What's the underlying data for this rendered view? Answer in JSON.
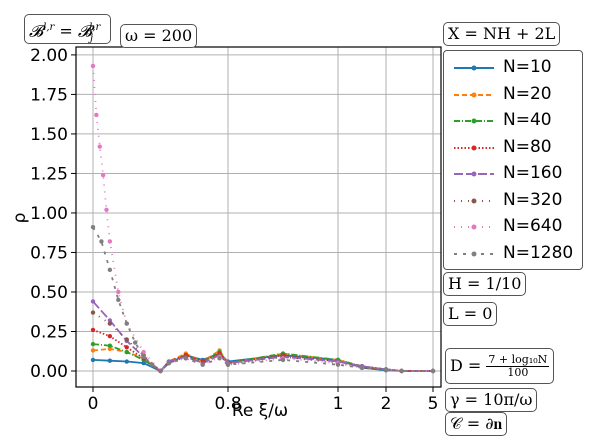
{
  "chart_data": {
    "type": "scatter",
    "xlabel": "Re ξ/ω",
    "ylabel": "ρ",
    "ylim": [
      0,
      2.05
    ],
    "x_ticks": [
      "0",
      "0.8",
      "1",
      "2",
      "5"
    ],
    "y_ticks": [
      "0.00",
      "0.25",
      "0.50",
      "0.75",
      "1.00",
      "1.25",
      "1.50",
      "1.75",
      "2.00"
    ],
    "grid": true,
    "legend_position": "right",
    "series": [
      {
        "name": "N=10",
        "color": "#1f77b4",
        "style": "solid",
        "x": [
          0,
          0.1,
          0.2,
          0.3,
          0.4,
          0.45,
          0.55,
          0.65,
          0.75,
          0.8,
          0.9,
          1.0,
          1.5,
          2.0,
          3.0,
          5.0
        ],
        "y": [
          0.07,
          0.065,
          0.06,
          0.05,
          0.0,
          0.05,
          0.1,
          0.07,
          0.11,
          0.06,
          0.1,
          0.07,
          0.02,
          0.005,
          0.0,
          0.0
        ]
      },
      {
        "name": "N=20",
        "color": "#ff7f0e",
        "style": "dashed",
        "x": [
          0,
          0.1,
          0.2,
          0.3,
          0.4,
          0.45,
          0.55,
          0.65,
          0.75,
          0.8,
          0.9,
          1.0,
          1.5,
          2.0,
          3.0,
          5.0
        ],
        "y": [
          0.13,
          0.14,
          0.12,
          0.08,
          0.0,
          0.06,
          0.11,
          0.06,
          0.13,
          0.05,
          0.11,
          0.07,
          0.03,
          0.01,
          0.0,
          0.0
        ]
      },
      {
        "name": "N=40",
        "color": "#2ca02c",
        "style": "dashdot",
        "x": [
          0,
          0.1,
          0.2,
          0.3,
          0.4,
          0.45,
          0.55,
          0.65,
          0.75,
          0.8,
          0.9,
          1.0,
          1.5,
          2.0,
          3.0,
          5.0
        ],
        "y": [
          0.17,
          0.16,
          0.12,
          0.07,
          0.0,
          0.06,
          0.1,
          0.06,
          0.12,
          0.05,
          0.11,
          0.07,
          0.03,
          0.01,
          0.0,
          0.0
        ]
      },
      {
        "name": "N=80",
        "color": "#d62728",
        "style": "dotted",
        "x": [
          0,
          0.1,
          0.2,
          0.3,
          0.4,
          0.45,
          0.55,
          0.65,
          0.75,
          0.8,
          0.9,
          1.0,
          1.5,
          2.0,
          3.0,
          5.0
        ],
        "y": [
          0.26,
          0.22,
          0.15,
          0.08,
          0.0,
          0.06,
          0.1,
          0.06,
          0.11,
          0.05,
          0.1,
          0.06,
          0.03,
          0.01,
          0.0,
          0.0
        ]
      },
      {
        "name": "N=160",
        "color": "#9467bd",
        "style": "longdash",
        "x": [
          0,
          0.1,
          0.2,
          0.3,
          0.4,
          0.45,
          0.55,
          0.65,
          0.75,
          0.8,
          0.9,
          1.0,
          1.5,
          2.0,
          3.0,
          5.0
        ],
        "y": [
          0.44,
          0.32,
          0.19,
          0.09,
          0.0,
          0.06,
          0.09,
          0.05,
          0.1,
          0.05,
          0.09,
          0.06,
          0.03,
          0.01,
          0.0,
          0.0
        ]
      },
      {
        "name": "N=320",
        "color": "#8c564b",
        "style": "sparse",
        "x": [
          0,
          0.1,
          0.2,
          0.3,
          0.4,
          0.45,
          0.55,
          0.65,
          0.75,
          0.8,
          0.9,
          1.0,
          1.5,
          2.0,
          3.0,
          5.0
        ],
        "y": [
          0.37,
          0.3,
          0.2,
          0.1,
          0.0,
          0.05,
          0.09,
          0.05,
          0.1,
          0.04,
          0.09,
          0.05,
          0.02,
          0.01,
          0.0,
          0.0
        ]
      },
      {
        "name": "N=640",
        "color": "#e377c2",
        "style": "sparse",
        "x": [
          0,
          0.02,
          0.04,
          0.06,
          0.08,
          0.1,
          0.15,
          0.2,
          0.3,
          0.4,
          0.45,
          0.55,
          0.65,
          0.75,
          0.8,
          0.9,
          1.0,
          1.5,
          2.0,
          3.0,
          5.0
        ],
        "y": [
          1.93,
          1.62,
          1.42,
          1.24,
          1.02,
          0.82,
          0.5,
          0.3,
          0.12,
          0.0,
          0.05,
          0.08,
          0.04,
          0.09,
          0.04,
          0.08,
          0.05,
          0.02,
          0.01,
          0.0,
          0.0
        ]
      },
      {
        "name": "N=1280",
        "color": "#7f7f7f",
        "style": "dashsparse",
        "x": [
          0,
          0.05,
          0.1,
          0.15,
          0.2,
          0.25,
          0.3,
          0.35,
          0.4,
          0.45,
          0.55,
          0.65,
          0.75,
          0.8,
          0.9,
          1.0,
          1.5,
          2.0,
          3.0,
          5.0
        ],
        "y": [
          0.91,
          0.82,
          0.64,
          0.45,
          0.3,
          0.18,
          0.09,
          0.04,
          0.0,
          0.05,
          0.08,
          0.04,
          0.08,
          0.04,
          0.07,
          0.04,
          0.02,
          0.01,
          0.0,
          0.0
        ]
      }
    ]
  },
  "annotations": {
    "bc_label": "𝓑^{l,r} = 𝓑_j^{l,r}",
    "omega": "ω = 200",
    "x_def": "X = NH + 2L",
    "h_val": "H = 1/10",
    "l_val": "L = 0",
    "d_lhs": "D =",
    "d_num": "7 + log₁₀N",
    "d_den": "100",
    "gamma": "γ = 10π/ω",
    "c_def": "𝒞 = ∂𝐧"
  }
}
